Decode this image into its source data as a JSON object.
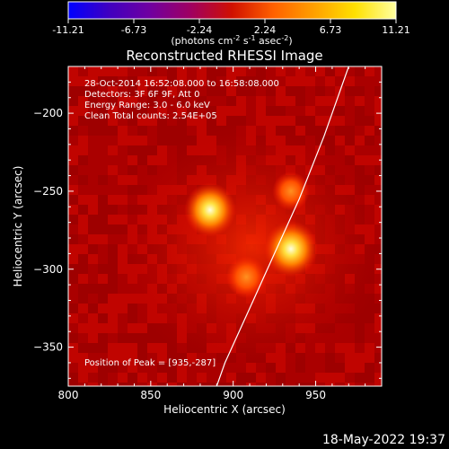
{
  "colors": {
    "background": "#000000",
    "text": "#ffffff",
    "colormap": [
      "#0000ff",
      "#4000c0",
      "#7000a0",
      "#a00060",
      "#d01000",
      "#ff6000",
      "#ffa000",
      "#ffe000",
      "#ffffa0"
    ]
  },
  "colorbar": {
    "ticks": [
      "-11.21",
      "-6.73",
      "-2.24",
      "2.24",
      "6.73",
      "11.21"
    ],
    "unit_label": "(photons cm",
    "unit_exp1": "-2",
    "unit_mid1": " s",
    "unit_exp2": "-1",
    "unit_mid2": " asec",
    "unit_exp3": "-2",
    "unit_end": ")"
  },
  "plot": {
    "title": "Reconstructed RHESSI Image",
    "xlabel": "Heliocentric X (arcsec)",
    "ylabel": "Heliocentric Y (arcsec)",
    "xticks": [
      "800",
      "850",
      "900",
      "950"
    ],
    "yticks": [
      "-200",
      "-250",
      "-300",
      "-350"
    ],
    "info_lines": [
      "28-Oct-2014 16:52:08.000 to 16:58:08.000",
      "Detectors: 3F 6F 9F, Att 0",
      "Energy Range: 3.0 - 6.0 keV",
      "Clean    Total counts: 2.54E+05"
    ],
    "peak_label": "Position of Peak = [935,-287]"
  },
  "footer": {
    "timestamp": "18-May-2022 19:37"
  },
  "chart_data": {
    "type": "heatmap",
    "title": "Reconstructed RHESSI Image",
    "xlabel": "Heliocentric X (arcsec)",
    "ylabel": "Heliocentric Y (arcsec)",
    "xlim": [
      800,
      990
    ],
    "ylim": [
      -375,
      -170
    ],
    "colorbar_range": [
      -11.21,
      11.21
    ],
    "sources": [
      {
        "x": 886,
        "y": -262,
        "peak": 10.5
      },
      {
        "x": 935,
        "y": -287,
        "peak": 11.21
      },
      {
        "x": 908,
        "y": -305,
        "peak": 7.0
      },
      {
        "x": 935,
        "y": -250,
        "peak": 6.0
      }
    ],
    "limb_curve": [
      [
        970,
        -170
      ],
      [
        955,
        -215
      ],
      [
        940,
        -255
      ],
      [
        925,
        -290
      ],
      [
        910,
        -325
      ],
      [
        895,
        -360
      ],
      [
        890,
        -375
      ]
    ]
  }
}
